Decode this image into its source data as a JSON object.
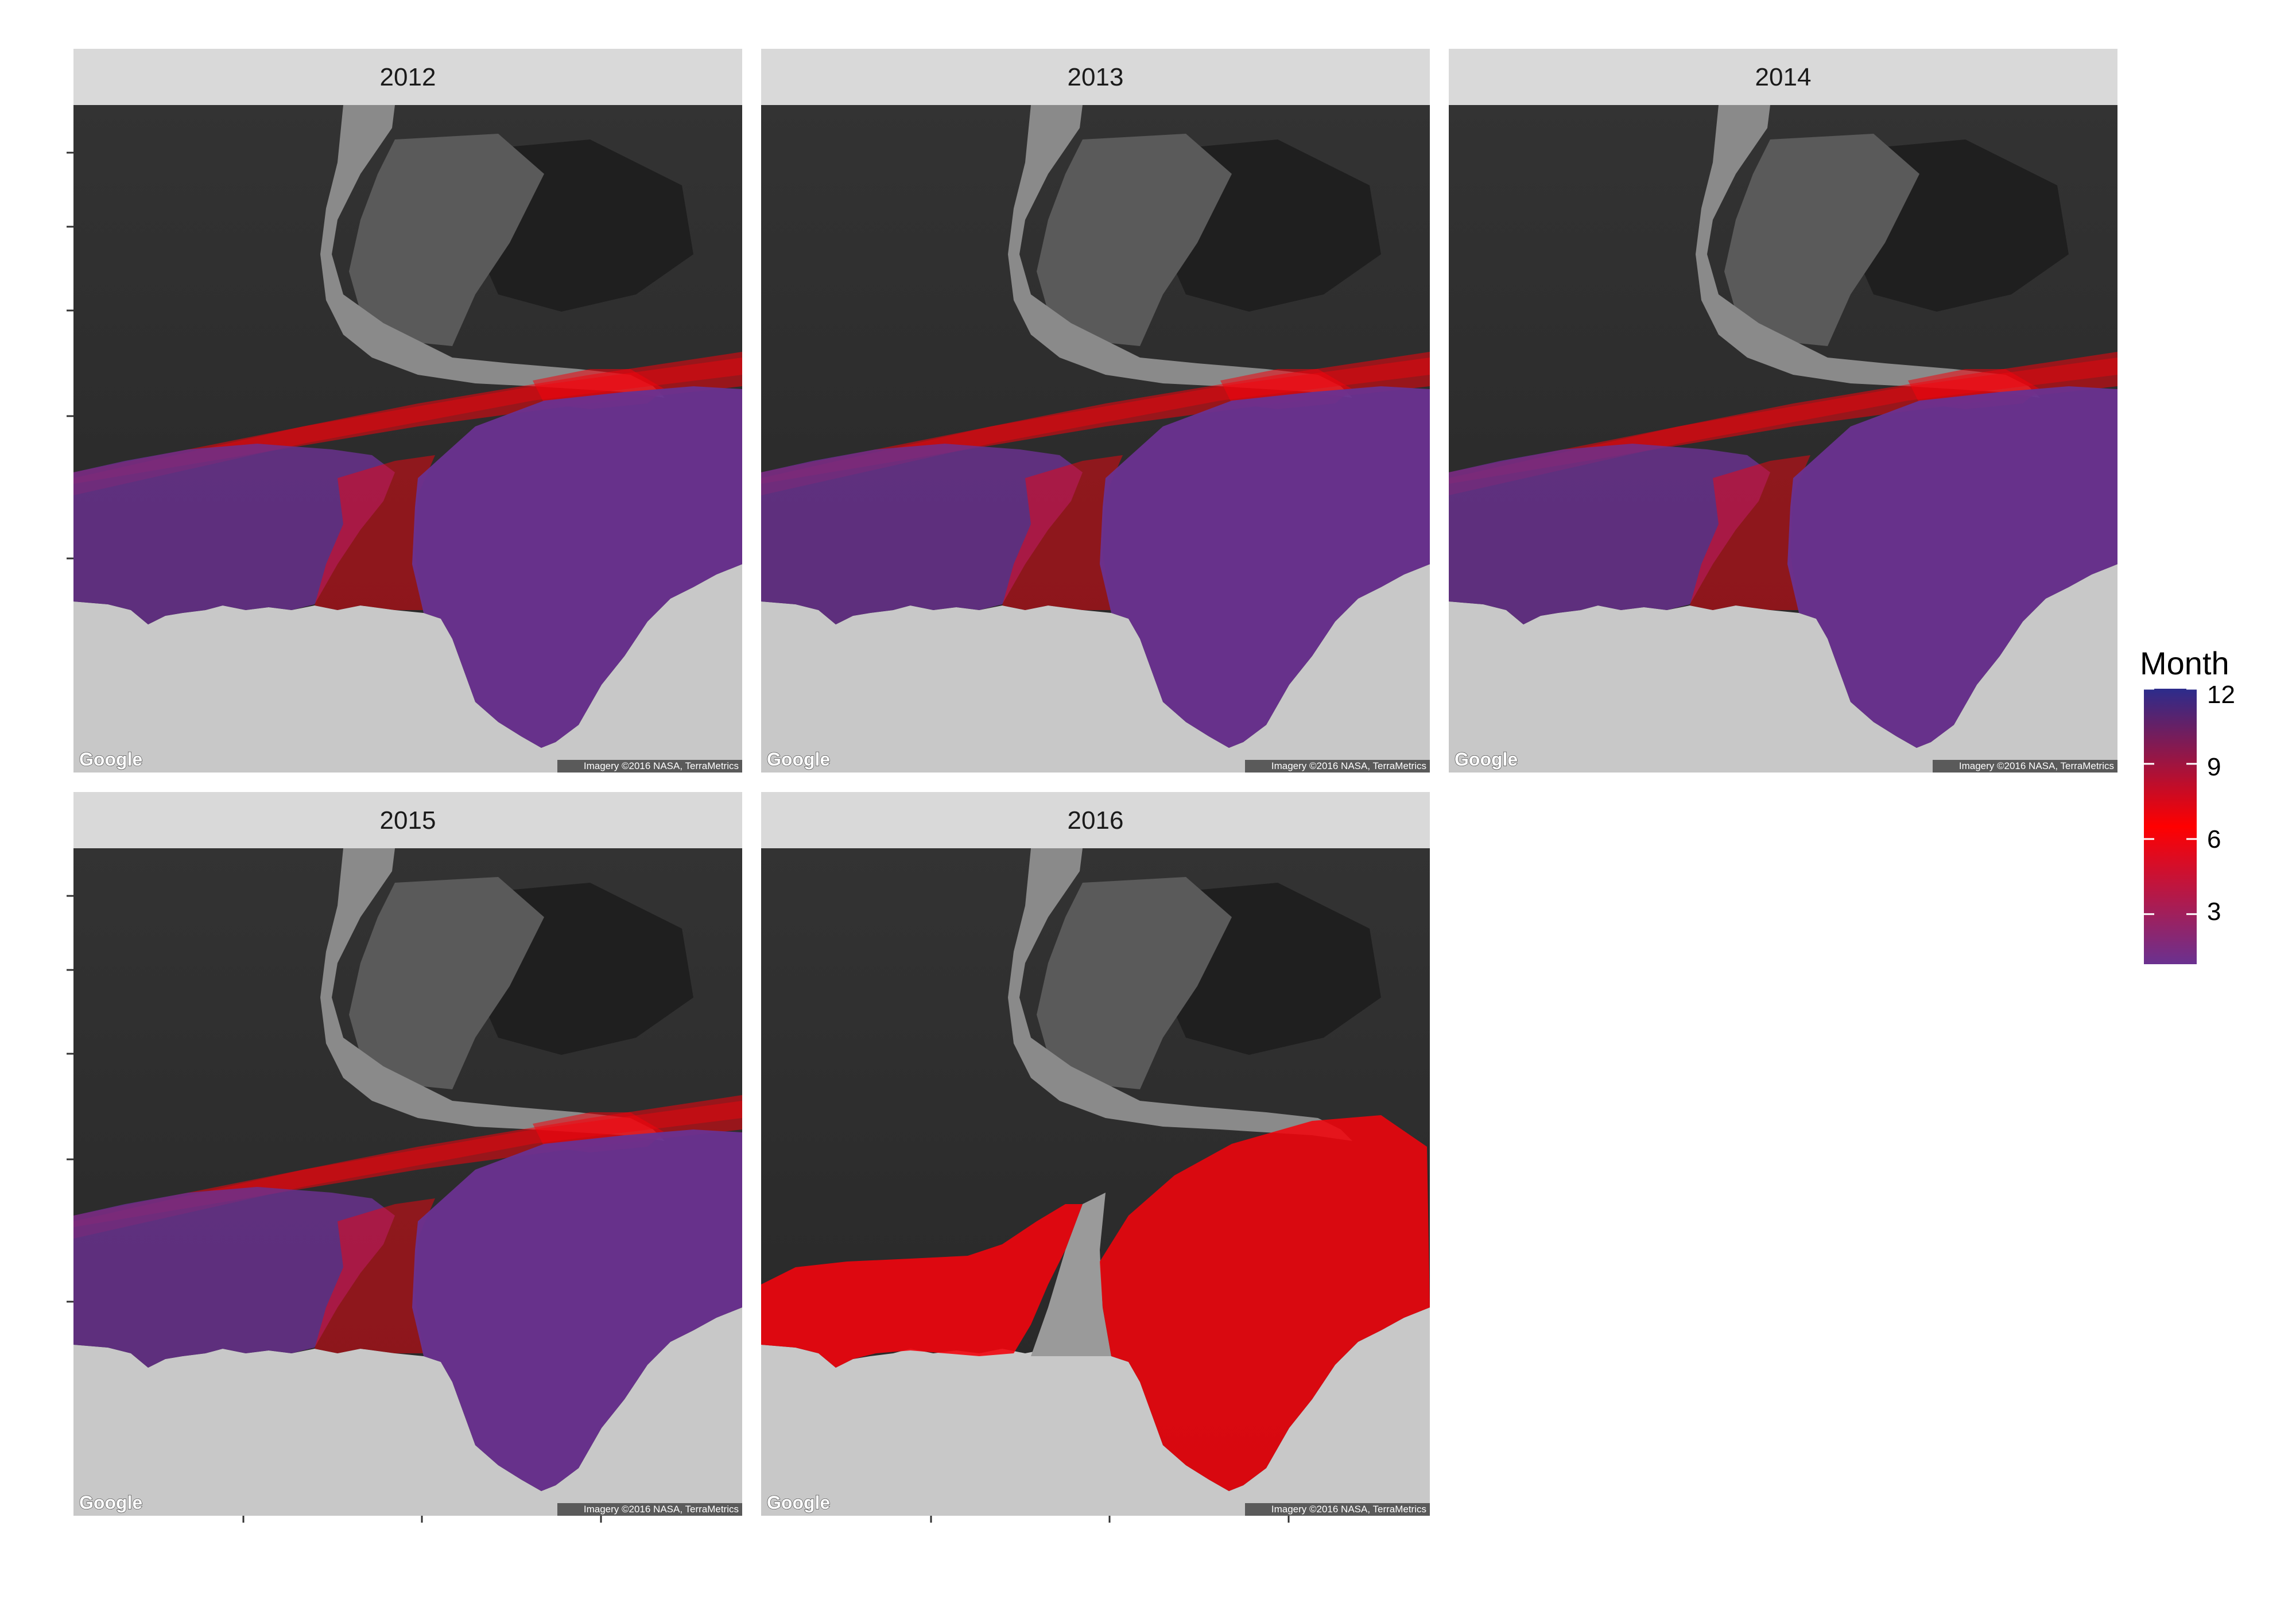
{
  "chart_data": {
    "type": "map",
    "facet_variable": "year",
    "panels": [
      {
        "year": "2012",
        "dominant_month": 1
      },
      {
        "year": "2013",
        "dominant_month": 1
      },
      {
        "year": "2014",
        "dominant_month": 1
      },
      {
        "year": "2015",
        "dominant_month": 1
      },
      {
        "year": "2016",
        "dominant_month": 6
      }
    ],
    "fill_legend": {
      "title": "Month",
      "breaks": [
        "3",
        "6",
        "9",
        "12"
      ],
      "range": [
        1,
        12
      ],
      "gradient": [
        "#6a3190",
        "#ff0000",
        "#2c2c8c"
      ]
    },
    "basemap": {
      "logo": "Google",
      "attribution": "Imagery ©2016 NASA, TerraMetrics"
    },
    "colors": {
      "strip_background": "#d9d9d9",
      "sea_ice": "#2e2e2e",
      "land_ice": "#c8c8c8",
      "month_low": "#6a3190",
      "month_mid": "#ff0000",
      "month_high": "#2c2c8c"
    }
  }
}
